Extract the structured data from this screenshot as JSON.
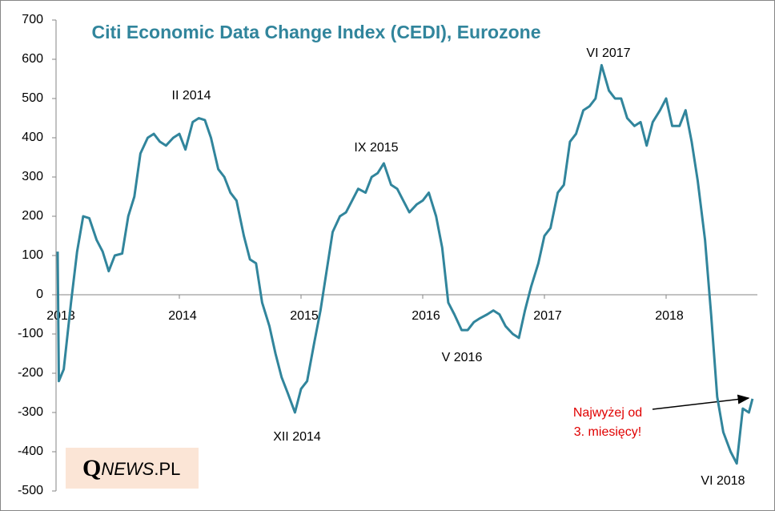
{
  "chart_data": {
    "type": "line",
    "title": "Citi Economic Data Change Index (CEDI), Eurozone",
    "x": [
      2013.0,
      2013.01,
      2013.05,
      2013.11,
      2013.16,
      2013.21,
      2013.26,
      2013.32,
      2013.37,
      2013.42,
      2013.47,
      2013.53,
      2013.58,
      2013.63,
      2013.68,
      2013.74,
      2013.79,
      2013.84,
      2013.89,
      2013.95,
      2014.0,
      2014.05,
      2014.11,
      2014.16,
      2014.21,
      2014.26,
      2014.32,
      2014.37,
      2014.42,
      2014.47,
      2014.53,
      2014.58,
      2014.63,
      2014.68,
      2014.74,
      2014.79,
      2014.84,
      2014.89,
      2014.95,
      2015.0,
      2015.05,
      2015.11,
      2015.16,
      2015.21,
      2015.26,
      2015.32,
      2015.37,
      2015.42,
      2015.47,
      2015.53,
      2015.58,
      2015.63,
      2015.68,
      2015.74,
      2015.79,
      2015.84,
      2015.89,
      2015.95,
      2016.0,
      2016.05,
      2016.11,
      2016.16,
      2016.21,
      2016.26,
      2016.32,
      2016.37,
      2016.42,
      2016.47,
      2016.53,
      2016.58,
      2016.63,
      2016.68,
      2016.74,
      2016.79,
      2016.84,
      2016.89,
      2016.95,
      2017.0,
      2017.05,
      2017.11,
      2017.16,
      2017.21,
      2017.26,
      2017.32,
      2017.37,
      2017.42,
      2017.47,
      2017.53,
      2017.58,
      2017.63,
      2017.68,
      2017.74,
      2017.79,
      2017.84,
      2017.89,
      2017.95,
      2018.0,
      2018.05,
      2018.11,
      2018.16,
      2018.21,
      2018.26,
      2018.32,
      2018.37,
      2018.42,
      2018.47,
      2018.53,
      2018.58,
      2018.63,
      2018.68,
      2018.71
    ],
    "values": [
      110,
      -220,
      -190,
      -20,
      110,
      200,
      195,
      140,
      110,
      60,
      100,
      105,
      200,
      250,
      360,
      400,
      410,
      390,
      380,
      400,
      410,
      370,
      440,
      450,
      445,
      400,
      320,
      300,
      260,
      240,
      150,
      90,
      80,
      -20,
      -80,
      -150,
      -210,
      -250,
      -300,
      -240,
      -220,
      -120,
      -40,
      60,
      160,
      200,
      210,
      240,
      270,
      260,
      300,
      310,
      335,
      280,
      270,
      240,
      210,
      230,
      240,
      260,
      200,
      120,
      -20,
      -50,
      -90,
      -90,
      -70,
      -60,
      -50,
      -40,
      -50,
      -80,
      -100,
      -110,
      -40,
      20,
      80,
      150,
      170,
      260,
      280,
      390,
      410,
      470,
      480,
      500,
      585,
      520,
      500,
      500,
      450,
      430,
      440,
      380,
      440,
      470,
      500,
      430,
      430,
      470,
      390,
      290,
      140,
      -50,
      -260,
      -350,
      -400,
      -430,
      -290,
      -300,
      -265
    ],
    "color": "#31859c",
    "xlim": [
      2013,
      2018.75
    ],
    "xticks": [
      2013,
      2014,
      2015,
      2016,
      2017,
      2018
    ],
    "ylim": [
      -500,
      700
    ],
    "yticks": [
      -500,
      -400,
      -300,
      -200,
      -100,
      0,
      100,
      200,
      300,
      400,
      500,
      600,
      700
    ],
    "annotations": [
      "II 2014",
      "IX 2015",
      "XII 2014",
      "V 2016",
      "VI 2017",
      "VI 2018"
    ],
    "note": [
      "Najwyżej od",
      "3. miesięcy!"
    ],
    "logo": [
      "Q",
      "NEWS",
      ".PL"
    ]
  }
}
